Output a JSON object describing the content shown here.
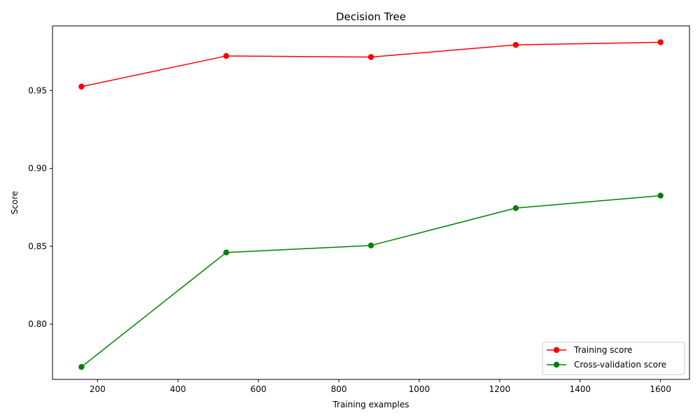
{
  "chart_data": {
    "type": "line",
    "title": "Decision Tree",
    "xlabel": "Training examples",
    "ylabel": "Score",
    "x": [
      160,
      520,
      880,
      1240,
      1600
    ],
    "xlim": [
      88,
      1672
    ],
    "ylim": [
      0.7645,
      0.9915
    ],
    "xticks": [
      200,
      400,
      600,
      800,
      1000,
      1200,
      1400,
      1600
    ],
    "yticks": [
      0.8,
      0.85,
      0.9,
      0.95
    ],
    "ytick_labels": [
      "0.80",
      "0.85",
      "0.90",
      "0.95"
    ],
    "grid": false,
    "legend_position": "lower-right",
    "series": [
      {
        "name": "Training score",
        "color": "#ff0000",
        "values": [
          0.9525,
          0.9722,
          0.9715,
          0.9793,
          0.981
        ]
      },
      {
        "name": "Cross-validation score",
        "color": "#008000",
        "values": [
          0.7725,
          0.846,
          0.8505,
          0.8745,
          0.8825
        ]
      }
    ]
  }
}
